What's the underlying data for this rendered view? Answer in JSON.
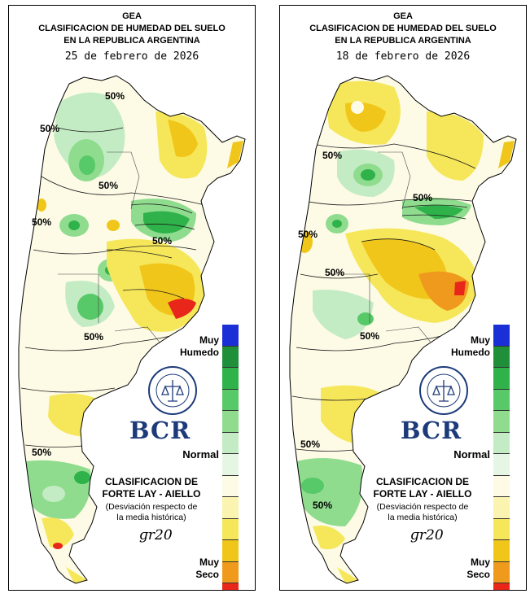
{
  "maps": [
    {
      "org": "GEA",
      "title_line1": "CLASIFICACION DE HUMEDAD DEL SUELO",
      "title_line2": "EN LA REPUBLICA ARGENTINA",
      "date": "25 de febrero de 2026",
      "contour_labels": [
        "50%",
        "50%",
        "50%",
        "50%",
        "50%",
        "50%",
        "50%"
      ],
      "logo_text": "BCR"
    },
    {
      "org": "GEA",
      "title_line1": "CLASIFICACION DE HUMEDAD DEL SUELO",
      "title_line2": "EN LA REPUBLICA ARGENTINA",
      "date": "18 de febrero de 2026",
      "contour_labels": [
        "50%",
        "50%",
        "50%",
        "50%",
        "50%",
        "50%",
        "50%"
      ],
      "logo_text": "BCR"
    }
  ],
  "legend": {
    "top_label_line1": "Muy",
    "top_label_line2": "Humedo",
    "middle_label": "Normal",
    "bottom_label_line1": "Muy",
    "bottom_label_line2": "Seco",
    "classification_line1": "CLASIFICACION DE",
    "classification_line2": "FORTE LAY - AIELLO",
    "note_line1": "(Desviación respecto de",
    "note_line2": "la media histórica)",
    "signature": "ɡr20",
    "colors": [
      "#1a2fd6",
      "#1f8f3a",
      "#2fb24a",
      "#58c968",
      "#8fdc8f",
      "#c4ecc4",
      "#e5f6e5",
      "#fdfbe6",
      "#fbf3b0",
      "#f6e75a",
      "#f1c61a",
      "#ef9a1d",
      "#e8261a"
    ]
  }
}
